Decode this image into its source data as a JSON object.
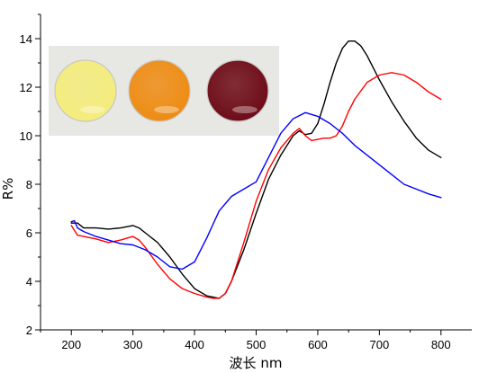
{
  "chart_data": {
    "type": "line",
    "title": "",
    "xlabel": "波长 nm",
    "ylabel": "R%",
    "xlim": [
      150,
      850
    ],
    "ylim": [
      2,
      15
    ],
    "x_ticks": [
      200,
      300,
      400,
      500,
      600,
      700,
      800
    ],
    "y_ticks": [
      2,
      4,
      6,
      8,
      10,
      12,
      14
    ],
    "grid": false,
    "legend": "none",
    "inset": {
      "description_icon": "photo-inset",
      "disc_colors": [
        "#f4ec7c",
        "#ee8c14",
        "#6e0c18"
      ],
      "background": "#e7e7e4"
    },
    "series": [
      {
        "color": "#000000",
        "x": [
          200,
          210,
          220,
          240,
          260,
          280,
          300,
          310,
          320,
          340,
          360,
          380,
          400,
          420,
          440,
          450,
          460,
          480,
          500,
          520,
          540,
          560,
          570,
          580,
          590,
          600,
          610,
          620,
          630,
          640,
          650,
          660,
          670,
          680,
          700,
          720,
          740,
          760,
          780,
          800
        ],
        "y": [
          6.4,
          6.4,
          6.2,
          6.2,
          6.15,
          6.2,
          6.3,
          6.2,
          6.0,
          5.6,
          5.0,
          4.3,
          3.7,
          3.4,
          3.3,
          3.5,
          4.0,
          5.3,
          6.8,
          8.2,
          9.2,
          10.0,
          10.2,
          10.05,
          10.1,
          10.5,
          11.3,
          12.2,
          13.0,
          13.6,
          13.9,
          13.9,
          13.7,
          13.3,
          12.3,
          11.4,
          10.6,
          9.9,
          9.4,
          9.1
        ]
      },
      {
        "color": "#ff0000",
        "x": [
          200,
          210,
          220,
          240,
          260,
          280,
          300,
          310,
          320,
          340,
          360,
          380,
          400,
          420,
          430,
          440,
          450,
          460,
          480,
          500,
          520,
          540,
          560,
          570,
          580,
          590,
          600,
          610,
          620,
          630,
          640,
          650,
          660,
          680,
          700,
          720,
          740,
          760,
          780,
          800
        ],
        "y": [
          6.3,
          5.9,
          5.85,
          5.75,
          5.6,
          5.7,
          5.85,
          5.7,
          5.4,
          4.7,
          4.1,
          3.7,
          3.5,
          3.35,
          3.3,
          3.3,
          3.5,
          4.0,
          5.6,
          7.3,
          8.6,
          9.5,
          10.1,
          10.3,
          10.0,
          9.8,
          9.85,
          9.9,
          9.9,
          10.0,
          10.4,
          11.0,
          11.5,
          12.2,
          12.5,
          12.6,
          12.5,
          12.2,
          11.8,
          11.5
        ]
      },
      {
        "color": "#0000ff",
        "x": [
          200,
          205,
          210,
          220,
          240,
          260,
          280,
          300,
          320,
          340,
          360,
          380,
          400,
          420,
          440,
          460,
          480,
          500,
          520,
          540,
          560,
          580,
          600,
          620,
          640,
          660,
          680,
          700,
          720,
          740,
          760,
          780,
          800
        ],
        "y": [
          6.45,
          6.5,
          6.2,
          6.05,
          5.85,
          5.7,
          5.55,
          5.5,
          5.3,
          5.0,
          4.6,
          4.5,
          4.8,
          5.8,
          6.9,
          7.5,
          7.8,
          8.1,
          9.1,
          10.1,
          10.7,
          10.95,
          10.8,
          10.5,
          10.1,
          9.6,
          9.2,
          8.8,
          8.4,
          8.0,
          7.8,
          7.6,
          7.45
        ]
      }
    ]
  }
}
